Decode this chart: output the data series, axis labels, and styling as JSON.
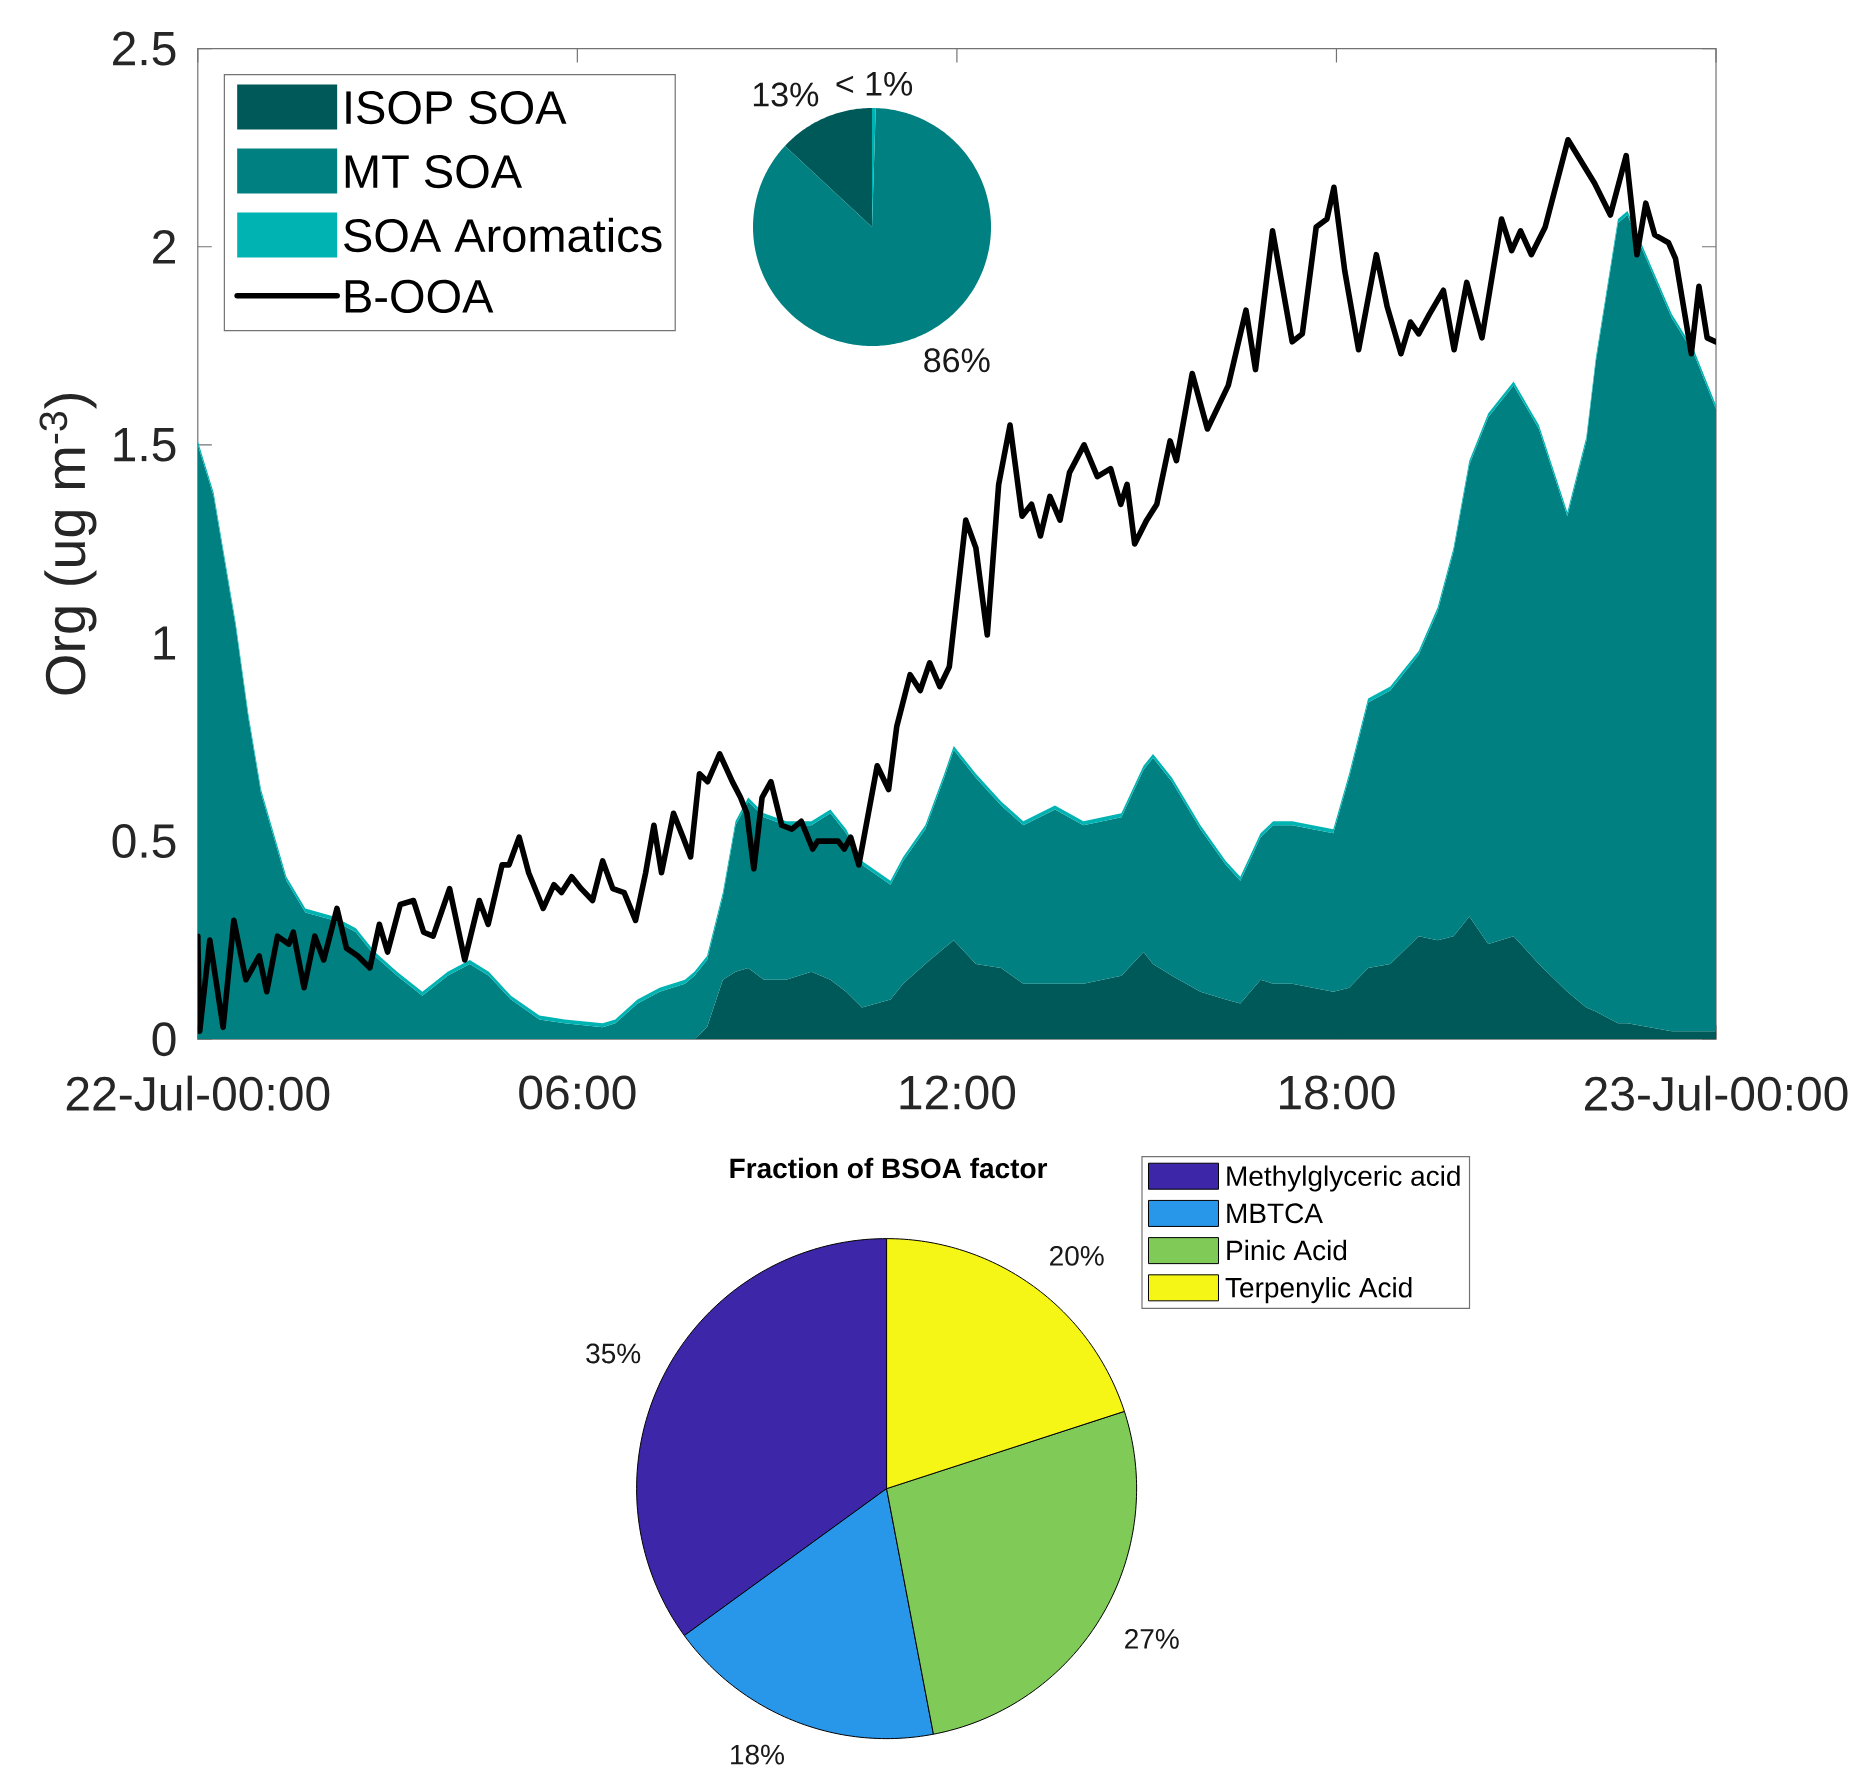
{
  "chart_data": [
    {
      "type": "area",
      "stacked": true,
      "ylabel": "Org (ug m$^{-3}$)",
      "xlim": [
        0,
        24
      ],
      "xticks": [
        {
          "value": 0,
          "label": "22-Jul-00:00"
        },
        {
          "value": 6,
          "label": "06:00"
        },
        {
          "value": 12,
          "label": "12:00"
        },
        {
          "value": 18,
          "label": "18:00"
        },
        {
          "value": 24,
          "label": "23-Jul-00:00"
        }
      ],
      "ylim": [
        0,
        2.5
      ],
      "yticks": [
        0,
        0.5,
        1,
        1.5,
        2,
        2.5
      ],
      "legend": "top left",
      "x": [
        0,
        0.25,
        0.6,
        0.8,
        1.0,
        1.4,
        1.7,
        2.15,
        2.5,
        2.8,
        3.15,
        3.55,
        3.95,
        4.3,
        4.6,
        4.95,
        5.4,
        5.8,
        6.4,
        6.6,
        6.95,
        7.3,
        7.7,
        7.85,
        8.05,
        8.3,
        8.5,
        8.7,
        8.95,
        9.3,
        9.7,
        10.0,
        10.25,
        10.5,
        10.95,
        11.15,
        11.5,
        11.8,
        11.95,
        12.3,
        12.7,
        13.05,
        13.55,
        14.0,
        14.6,
        14.95,
        15.1,
        15.4,
        15.85,
        16.25,
        16.48,
        16.8,
        17.0,
        17.3,
        17.95,
        18.2,
        18.5,
        18.85,
        19.3,
        19.6,
        19.85,
        20.1,
        20.4,
        20.8,
        21.2,
        21.65,
        21.95,
        22.1,
        22.45,
        22.6,
        22.95,
        23.3,
        23.65,
        24
      ],
      "series": [
        {
          "name": "ISOP SOA",
          "color": "#005959",
          "values": [
            0,
            0,
            0,
            0,
            0,
            0,
            0,
            0,
            0,
            0,
            0,
            0,
            0,
            0,
            0,
            0,
            0,
            0,
            0,
            0,
            0,
            0,
            0,
            0,
            0.03,
            0.15,
            0.17,
            0.18,
            0.15,
            0.15,
            0.17,
            0.15,
            0.12,
            0.08,
            0.1,
            0.14,
            0.19,
            0.23,
            0.25,
            0.19,
            0.18,
            0.14,
            0.14,
            0.14,
            0.16,
            0.22,
            0.19,
            0.16,
            0.12,
            0.1,
            0.09,
            0.15,
            0.14,
            0.14,
            0.12,
            0.13,
            0.18,
            0.19,
            0.26,
            0.25,
            0.26,
            0.31,
            0.24,
            0.26,
            0.19,
            0.12,
            0.08,
            0.07,
            0.04,
            0.04,
            0.03,
            0.02,
            0.02,
            0.02
          ]
        },
        {
          "name": "MT SOA",
          "color": "#008080",
          "values": [
            1.5,
            1.37,
            1.04,
            0.81,
            0.62,
            0.4,
            0.32,
            0.3,
            0.27,
            0.21,
            0.16,
            0.11,
            0.16,
            0.19,
            0.16,
            0.1,
            0.05,
            0.04,
            0.03,
            0.04,
            0.09,
            0.12,
            0.14,
            0.16,
            0.17,
            0.21,
            0.37,
            0.42,
            0.41,
            0.39,
            0.37,
            0.42,
            0.4,
            0.36,
            0.29,
            0.31,
            0.34,
            0.43,
            0.48,
            0.47,
            0.41,
            0.4,
            0.44,
            0.4,
            0.4,
            0.46,
            0.52,
            0.49,
            0.41,
            0.34,
            0.31,
            0.36,
            0.4,
            0.4,
            0.4,
            0.53,
            0.67,
            0.69,
            0.71,
            0.83,
            0.97,
            1.14,
            1.33,
            1.39,
            1.35,
            1.2,
            1.43,
            1.64,
            2.02,
            2.04,
            1.92,
            1.8,
            1.71,
            1.57
          ]
        },
        {
          "name": "SOA Aromatics",
          "color": "#00b3b3",
          "values": [
            0.01,
            0.01,
            0.01,
            0.01,
            0.01,
            0.01,
            0.01,
            0.01,
            0.01,
            0.01,
            0.01,
            0.01,
            0.01,
            0.01,
            0.01,
            0.01,
            0.01,
            0.01,
            0.01,
            0.01,
            0.01,
            0.01,
            0.01,
            0.01,
            0.01,
            0.01,
            0.01,
            0.01,
            0.01,
            0.01,
            0.01,
            0.01,
            0.01,
            0.01,
            0.01,
            0.01,
            0.01,
            0.01,
            0.01,
            0.01,
            0.01,
            0.01,
            0.01,
            0.01,
            0.01,
            0.01,
            0.01,
            0.01,
            0.01,
            0.01,
            0.01,
            0.01,
            0.01,
            0.01,
            0.01,
            0.01,
            0.01,
            0.01,
            0.01,
            0.01,
            0.01,
            0.01,
            0.01,
            0.01,
            0.01,
            0.01,
            0.01,
            0.01,
            0.01,
            0.01,
            0.01,
            0.01,
            0.01,
            0.01
          ]
        },
        {
          "name": "B-OOA",
          "type": "line",
          "color": "#000000",
          "x": [
            0,
            0.03,
            0.19,
            0.4,
            0.57,
            0.76,
            0.97,
            1.09,
            1.26,
            1.44,
            1.51,
            1.68,
            1.85,
            1.99,
            2.2,
            2.35,
            2.53,
            2.72,
            2.87,
            3.0,
            3.2,
            3.41,
            3.57,
            3.72,
            3.98,
            4.22,
            4.45,
            4.59,
            4.81,
            4.92,
            5.08,
            5.23,
            5.46,
            5.63,
            5.75,
            5.91,
            6.06,
            6.24,
            6.4,
            6.56,
            6.74,
            6.92,
            7.08,
            7.21,
            7.33,
            7.52,
            7.67,
            7.79,
            7.93,
            8.06,
            8.25,
            8.45,
            8.58,
            8.68,
            8.79,
            8.92,
            9.06,
            9.23,
            9.39,
            9.54,
            9.72,
            9.8,
            10.12,
            10.22,
            10.32,
            10.45,
            10.74,
            10.92,
            11.05,
            11.26,
            11.42,
            11.57,
            11.73,
            11.88,
            12.14,
            12.3,
            12.48,
            12.66,
            12.84,
            13.03,
            13.18,
            13.32,
            13.47,
            13.63,
            13.78,
            14.01,
            14.22,
            14.43,
            14.59,
            14.69,
            14.81,
            15.0,
            15.16,
            15.37,
            15.47,
            15.72,
            15.96,
            16.29,
            16.57,
            16.72,
            16.99,
            17.3,
            17.46,
            17.68,
            17.85,
            17.96,
            18.13,
            18.35,
            18.63,
            18.8,
            19.02,
            19.17,
            19.3,
            19.47,
            19.69,
            19.86,
            20.06,
            20.3,
            20.61,
            20.77,
            20.91,
            21.08,
            21.3,
            21.66,
            22.08,
            22.33,
            22.58,
            22.75,
            22.89,
            23.03,
            23.25,
            23.36,
            23.61,
            23.73,
            23.86,
            24
          ],
          "values": [
            0.26,
            0.02,
            0.25,
            0.03,
            0.3,
            0.15,
            0.21,
            0.12,
            0.26,
            0.24,
            0.27,
            0.13,
            0.26,
            0.2,
            0.33,
            0.23,
            0.21,
            0.18,
            0.29,
            0.22,
            0.34,
            0.35,
            0.27,
            0.26,
            0.38,
            0.2,
            0.35,
            0.29,
            0.44,
            0.44,
            0.51,
            0.42,
            0.33,
            0.39,
            0.37,
            0.41,
            0.38,
            0.35,
            0.45,
            0.38,
            0.37,
            0.3,
            0.42,
            0.54,
            0.42,
            0.57,
            0.51,
            0.46,
            0.67,
            0.65,
            0.72,
            0.65,
            0.61,
            0.57,
            0.43,
            0.61,
            0.65,
            0.54,
            0.53,
            0.55,
            0.48,
            0.5,
            0.5,
            0.48,
            0.51,
            0.44,
            0.69,
            0.63,
            0.79,
            0.92,
            0.88,
            0.95,
            0.89,
            0.94,
            1.31,
            1.24,
            1.02,
            1.4,
            1.55,
            1.32,
            1.35,
            1.27,
            1.37,
            1.31,
            1.43,
            1.5,
            1.42,
            1.44,
            1.35,
            1.4,
            1.25,
            1.31,
            1.35,
            1.51,
            1.46,
            1.68,
            1.54,
            1.65,
            1.84,
            1.69,
            2.04,
            1.76,
            1.78,
            2.05,
            2.07,
            2.15,
            1.94,
            1.74,
            1.98,
            1.85,
            1.73,
            1.81,
            1.78,
            1.83,
            1.89,
            1.74,
            1.91,
            1.77,
            2.07,
            1.99,
            2.04,
            1.98,
            2.05,
            2.27,
            2.16,
            2.08,
            2.23,
            1.98,
            2.11,
            2.03,
            2.01,
            1.97,
            1.73,
            1.9,
            1.77,
            1.76
          ]
        }
      ]
    },
    {
      "type": "pie",
      "categories": [
        null,
        null,
        null
      ],
      "values": [
        13,
        86,
        0.5
      ],
      "colors": [
        "#005959",
        "#008080",
        "#00b3b3"
      ],
      "value_labels": [
        "13%",
        "86%",
        "< 1%"
      ]
    },
    {
      "type": "pie",
      "title": "Fraction of BSOA factor",
      "categories": [
        "Methylglyceric acid",
        "MBTCA",
        "Pinic Acid",
        "Terpenylic Acid"
      ],
      "values": [
        35,
        18,
        27,
        20
      ],
      "colors": [
        "#3e26a8",
        "#2896e9",
        "#80cb58",
        "#f5f516"
      ],
      "value_labels": [
        "35%",
        "18%",
        "27%",
        "20%"
      ],
      "legend": "top right"
    }
  ]
}
